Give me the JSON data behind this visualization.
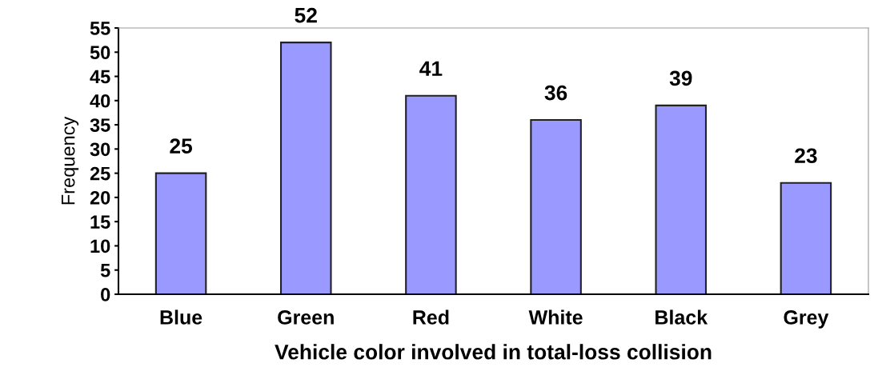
{
  "chart_data": {
    "type": "bar",
    "xlabel": "Vehicle color involved in total-loss collision",
    "ylabel": "Frequency",
    "categories": [
      "Blue",
      "Green",
      "Red",
      "White",
      "Black",
      "Grey"
    ],
    "values": [
      25,
      52,
      41,
      36,
      39,
      23
    ],
    "color": "#9999ff",
    "ylim": [
      0,
      55
    ],
    "yticks": [
      0,
      5,
      10,
      15,
      20,
      25,
      30,
      35,
      40,
      45,
      50,
      55
    ],
    "grid": false,
    "data_labels": true
  }
}
